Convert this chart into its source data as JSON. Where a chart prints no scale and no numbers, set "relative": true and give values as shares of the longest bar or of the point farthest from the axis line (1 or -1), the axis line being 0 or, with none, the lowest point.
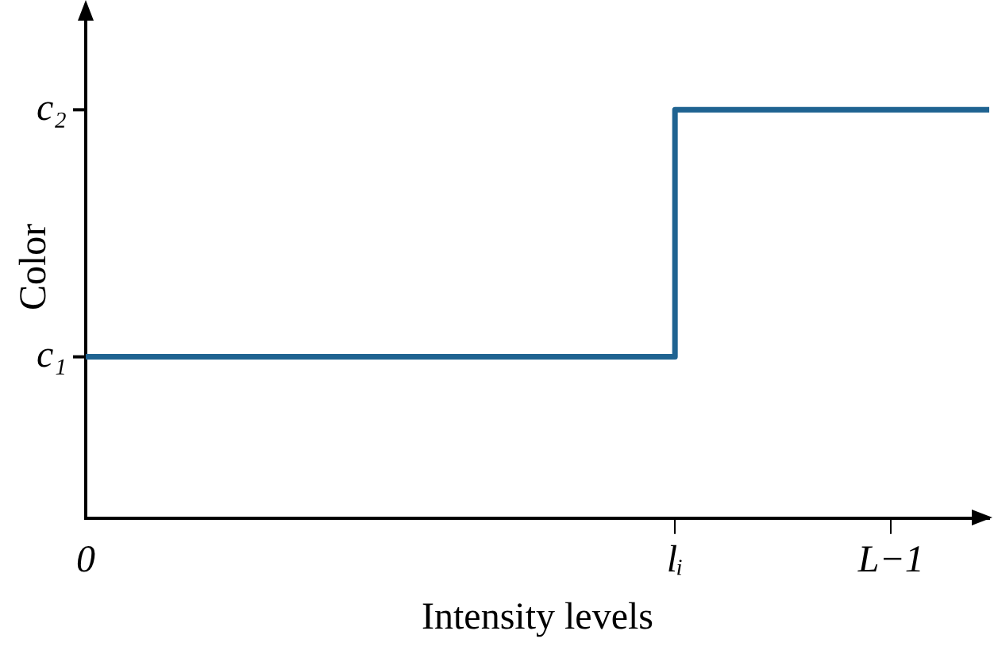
{
  "chart_data": {
    "type": "step",
    "relative": true,
    "xlabel": "Intensity levels",
    "ylabel": "Color",
    "categories": [
      "0",
      null,
      null,
      null,
      null,
      null,
      null,
      null,
      null,
      null,
      null,
      null,
      null,
      null,
      null,
      null,
      null,
      null,
      null,
      null,
      null,
      null,
      null,
      null,
      null,
      null,
      null,
      null,
      null,
      null,
      "lᵢ",
      null,
      null,
      null,
      null,
      null,
      null,
      null,
      null,
      null,
      null,
      "L−1",
      null,
      null,
      null,
      null,
      null
    ],
    "series": [
      {
        "color": "#1f6391",
        "values": [
          0.395,
          0.395,
          0.395,
          0.395,
          0.395,
          0.395,
          0.395,
          0.395,
          0.395,
          0.395,
          0.395,
          0.395,
          0.395,
          0.395,
          0.395,
          0.395,
          0.395,
          0.395,
          0.395,
          0.395,
          0.395,
          0.395,
          0.395,
          0.395,
          0.395,
          0.395,
          0.395,
          0.395,
          0.395,
          0.395,
          1,
          1,
          1,
          1,
          1,
          1,
          1,
          1,
          1,
          1,
          1,
          1,
          1,
          1,
          1,
          1,
          1
        ]
      }
    ],
    "annotations": [
      "c₁",
      "c₂"
    ],
    "grid": false,
    "legend": false,
    "marker": "none",
    "line_style": "solid"
  }
}
